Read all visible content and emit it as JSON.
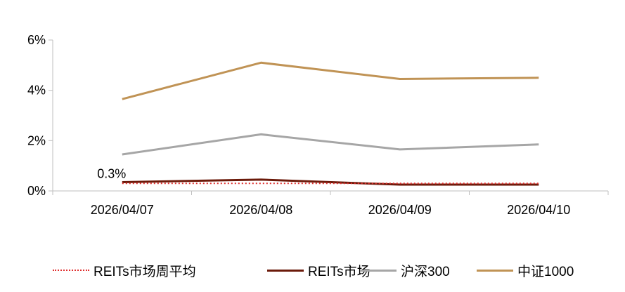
{
  "chart_data": {
    "type": "line",
    "categories": [
      "2026/04/07",
      "2026/04/08",
      "2026/04/09",
      "2026/04/10"
    ],
    "ylim": [
      0,
      6
    ],
    "yticks": [
      0,
      2,
      4,
      6
    ],
    "ytick_labels": [
      "0%",
      "2%",
      "4%",
      "6%"
    ],
    "grid": false,
    "legend_position": "bottom",
    "series": [
      {
        "name": "REITs市场周平均",
        "values": [
          0.3,
          0.3,
          0.3,
          0.3
        ],
        "color": "#e03030",
        "style": "dotted"
      },
      {
        "name": "REITs市场",
        "values": [
          0.35,
          0.45,
          0.25,
          0.25
        ],
        "color": "#6b1a0a",
        "style": "solid"
      },
      {
        "name": "沪深300",
        "values": [
          1.45,
          2.25,
          1.65,
          1.85
        ],
        "color": "#a6a6a6",
        "style": "solid"
      },
      {
        "name": "中证1000",
        "values": [
          3.65,
          5.1,
          4.45,
          4.5
        ],
        "color": "#c09355",
        "style": "solid"
      }
    ],
    "annotations": [
      {
        "text": "0.3%",
        "series": 0,
        "index": 0
      }
    ]
  }
}
